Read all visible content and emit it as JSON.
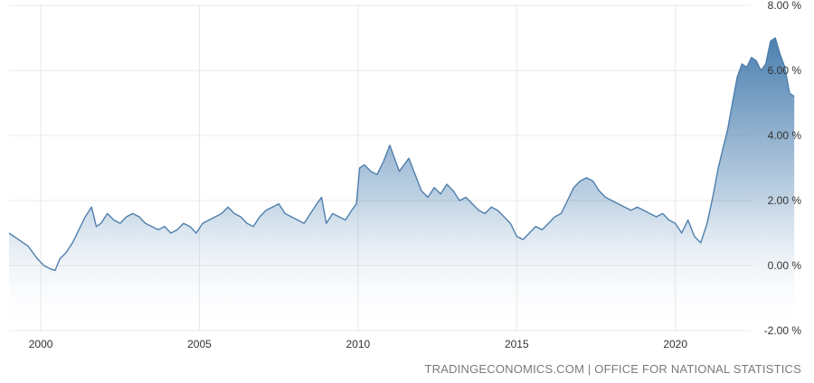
{
  "source_text": "TRADINGECONOMICS.COM | OFFICE FOR NATIONAL STATISTICS",
  "colors": {
    "line": "#4f7fad",
    "fill_top": "#4b80b0",
    "fill_bottom": "#ffffff",
    "grid": "#e8e8e8",
    "text": "#333333"
  },
  "chart_data": {
    "type": "area",
    "title": "",
    "xlabel": "",
    "ylabel": "",
    "grid": true,
    "xlim": [
      1999.0,
      2023.8
    ],
    "ylim": [
      -2,
      8
    ],
    "x_ticks": [
      2000,
      2005,
      2010,
      2015,
      2020
    ],
    "x_tick_labels": [
      "2000",
      "2005",
      "2010",
      "2015",
      "2020"
    ],
    "y_ticks": [
      8,
      6,
      4,
      2,
      0,
      -2
    ],
    "y_tick_labels": [
      "8.00 %",
      "6.00 %",
      "4.00 %",
      "2.00 %",
      "0.00 %",
      "-2.00 %"
    ],
    "series": [
      {
        "x": [
          1999.0,
          1999.3,
          1999.6,
          1999.9,
          2000.1,
          2000.3,
          2000.45,
          2000.6,
          2000.8,
          2001.0,
          2001.2,
          2001.4,
          2001.6,
          2001.75,
          2001.9,
          2002.1,
          2002.3,
          2002.5,
          2002.7,
          2002.9,
          2003.1,
          2003.3,
          2003.5,
          2003.7,
          2003.9,
          2004.1,
          2004.3,
          2004.5,
          2004.7,
          2004.9,
          2005.1,
          2005.3,
          2005.5,
          2005.7,
          2005.9,
          2006.1,
          2006.3,
          2006.5,
          2006.7,
          2006.9,
          2007.1,
          2007.3,
          2007.5,
          2007.7,
          2007.9,
          2008.1,
          2008.3,
          2008.5,
          2008.7,
          2008.85,
          2009.0,
          2009.2,
          2009.4,
          2009.6,
          2009.8,
          2009.95,
          2010.05,
          2010.2,
          2010.4,
          2010.6,
          2010.8,
          2011.0,
          2011.15,
          2011.3,
          2011.45,
          2011.6,
          2011.8,
          2012.0,
          2012.2,
          2012.4,
          2012.6,
          2012.8,
          2013.0,
          2013.2,
          2013.4,
          2013.6,
          2013.8,
          2014.0,
          2014.2,
          2014.4,
          2014.6,
          2014.8,
          2015.0,
          2015.2,
          2015.4,
          2015.6,
          2015.8,
          2016.0,
          2016.2,
          2016.4,
          2016.6,
          2016.8,
          2017.0,
          2017.2,
          2017.4,
          2017.6,
          2017.8,
          2018.0,
          2018.2,
          2018.4,
          2018.6,
          2018.8,
          2019.0,
          2019.2,
          2019.4,
          2019.6,
          2019.8,
          2020.0,
          2020.2,
          2020.4,
          2020.6,
          2020.8,
          2021.0,
          2021.2,
          2021.35,
          2021.5,
          2021.65,
          2021.8,
          2021.95,
          2022.1,
          2022.25,
          2022.4,
          2022.55,
          2022.7,
          2022.85,
          2023.0,
          2023.15,
          2023.3,
          2023.45,
          2023.6,
          2023.75
        ],
        "y": [
          1.0,
          0.8,
          0.6,
          0.2,
          0.0,
          -0.1,
          -0.15,
          0.2,
          0.4,
          0.7,
          1.1,
          1.5,
          1.8,
          1.2,
          1.3,
          1.6,
          1.4,
          1.3,
          1.5,
          1.6,
          1.5,
          1.3,
          1.2,
          1.1,
          1.2,
          1.0,
          1.1,
          1.3,
          1.2,
          1.0,
          1.3,
          1.4,
          1.5,
          1.6,
          1.8,
          1.6,
          1.5,
          1.3,
          1.2,
          1.5,
          1.7,
          1.8,
          1.9,
          1.6,
          1.5,
          1.4,
          1.3,
          1.6,
          1.9,
          2.1,
          1.3,
          1.6,
          1.5,
          1.4,
          1.7,
          1.9,
          3.0,
          3.1,
          2.9,
          2.8,
          3.2,
          3.7,
          3.3,
          2.9,
          3.1,
          3.3,
          2.8,
          2.3,
          2.1,
          2.4,
          2.2,
          2.5,
          2.3,
          2.0,
          2.1,
          1.9,
          1.7,
          1.6,
          1.8,
          1.7,
          1.5,
          1.3,
          0.9,
          0.8,
          1.0,
          1.2,
          1.1,
          1.3,
          1.5,
          1.6,
          2.0,
          2.4,
          2.6,
          2.7,
          2.6,
          2.3,
          2.1,
          2.0,
          1.9,
          1.8,
          1.7,
          1.8,
          1.7,
          1.6,
          1.5,
          1.6,
          1.4,
          1.3,
          1.0,
          1.4,
          0.9,
          0.7,
          1.3,
          2.2,
          3.0,
          3.6,
          4.2,
          5.0,
          5.8,
          6.2,
          6.1,
          6.4,
          6.3,
          6.0,
          6.2,
          6.9,
          7.0,
          6.5,
          6.1,
          5.3,
          5.2
        ]
      }
    ]
  }
}
